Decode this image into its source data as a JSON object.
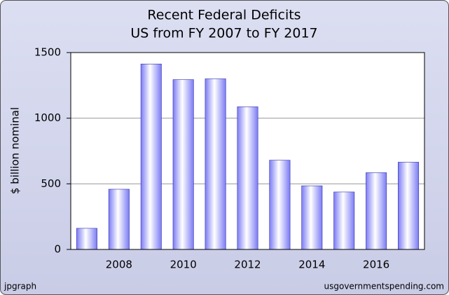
{
  "chart_data": {
    "type": "bar",
    "title": "Recent Federal Deficits",
    "subtitle": "US from FY 2007 to FY 2017",
    "y_label": "$ billion nominal",
    "annotations": [
      "jpgraph",
      "usgovernmentspending.com"
    ],
    "categories": [
      null,
      "2008",
      null,
      "2010",
      null,
      "2012",
      null,
      "2014",
      null,
      "2016",
      null
    ],
    "values": [
      161,
      459,
      1413,
      1294,
      1300,
      1087,
      680,
      485,
      438,
      585,
      665
    ],
    "color": "#7b7bf5",
    "ylim": [
      0,
      1500
    ],
    "yticks": [
      0,
      500,
      1000,
      1500
    ],
    "grid": true
  }
}
